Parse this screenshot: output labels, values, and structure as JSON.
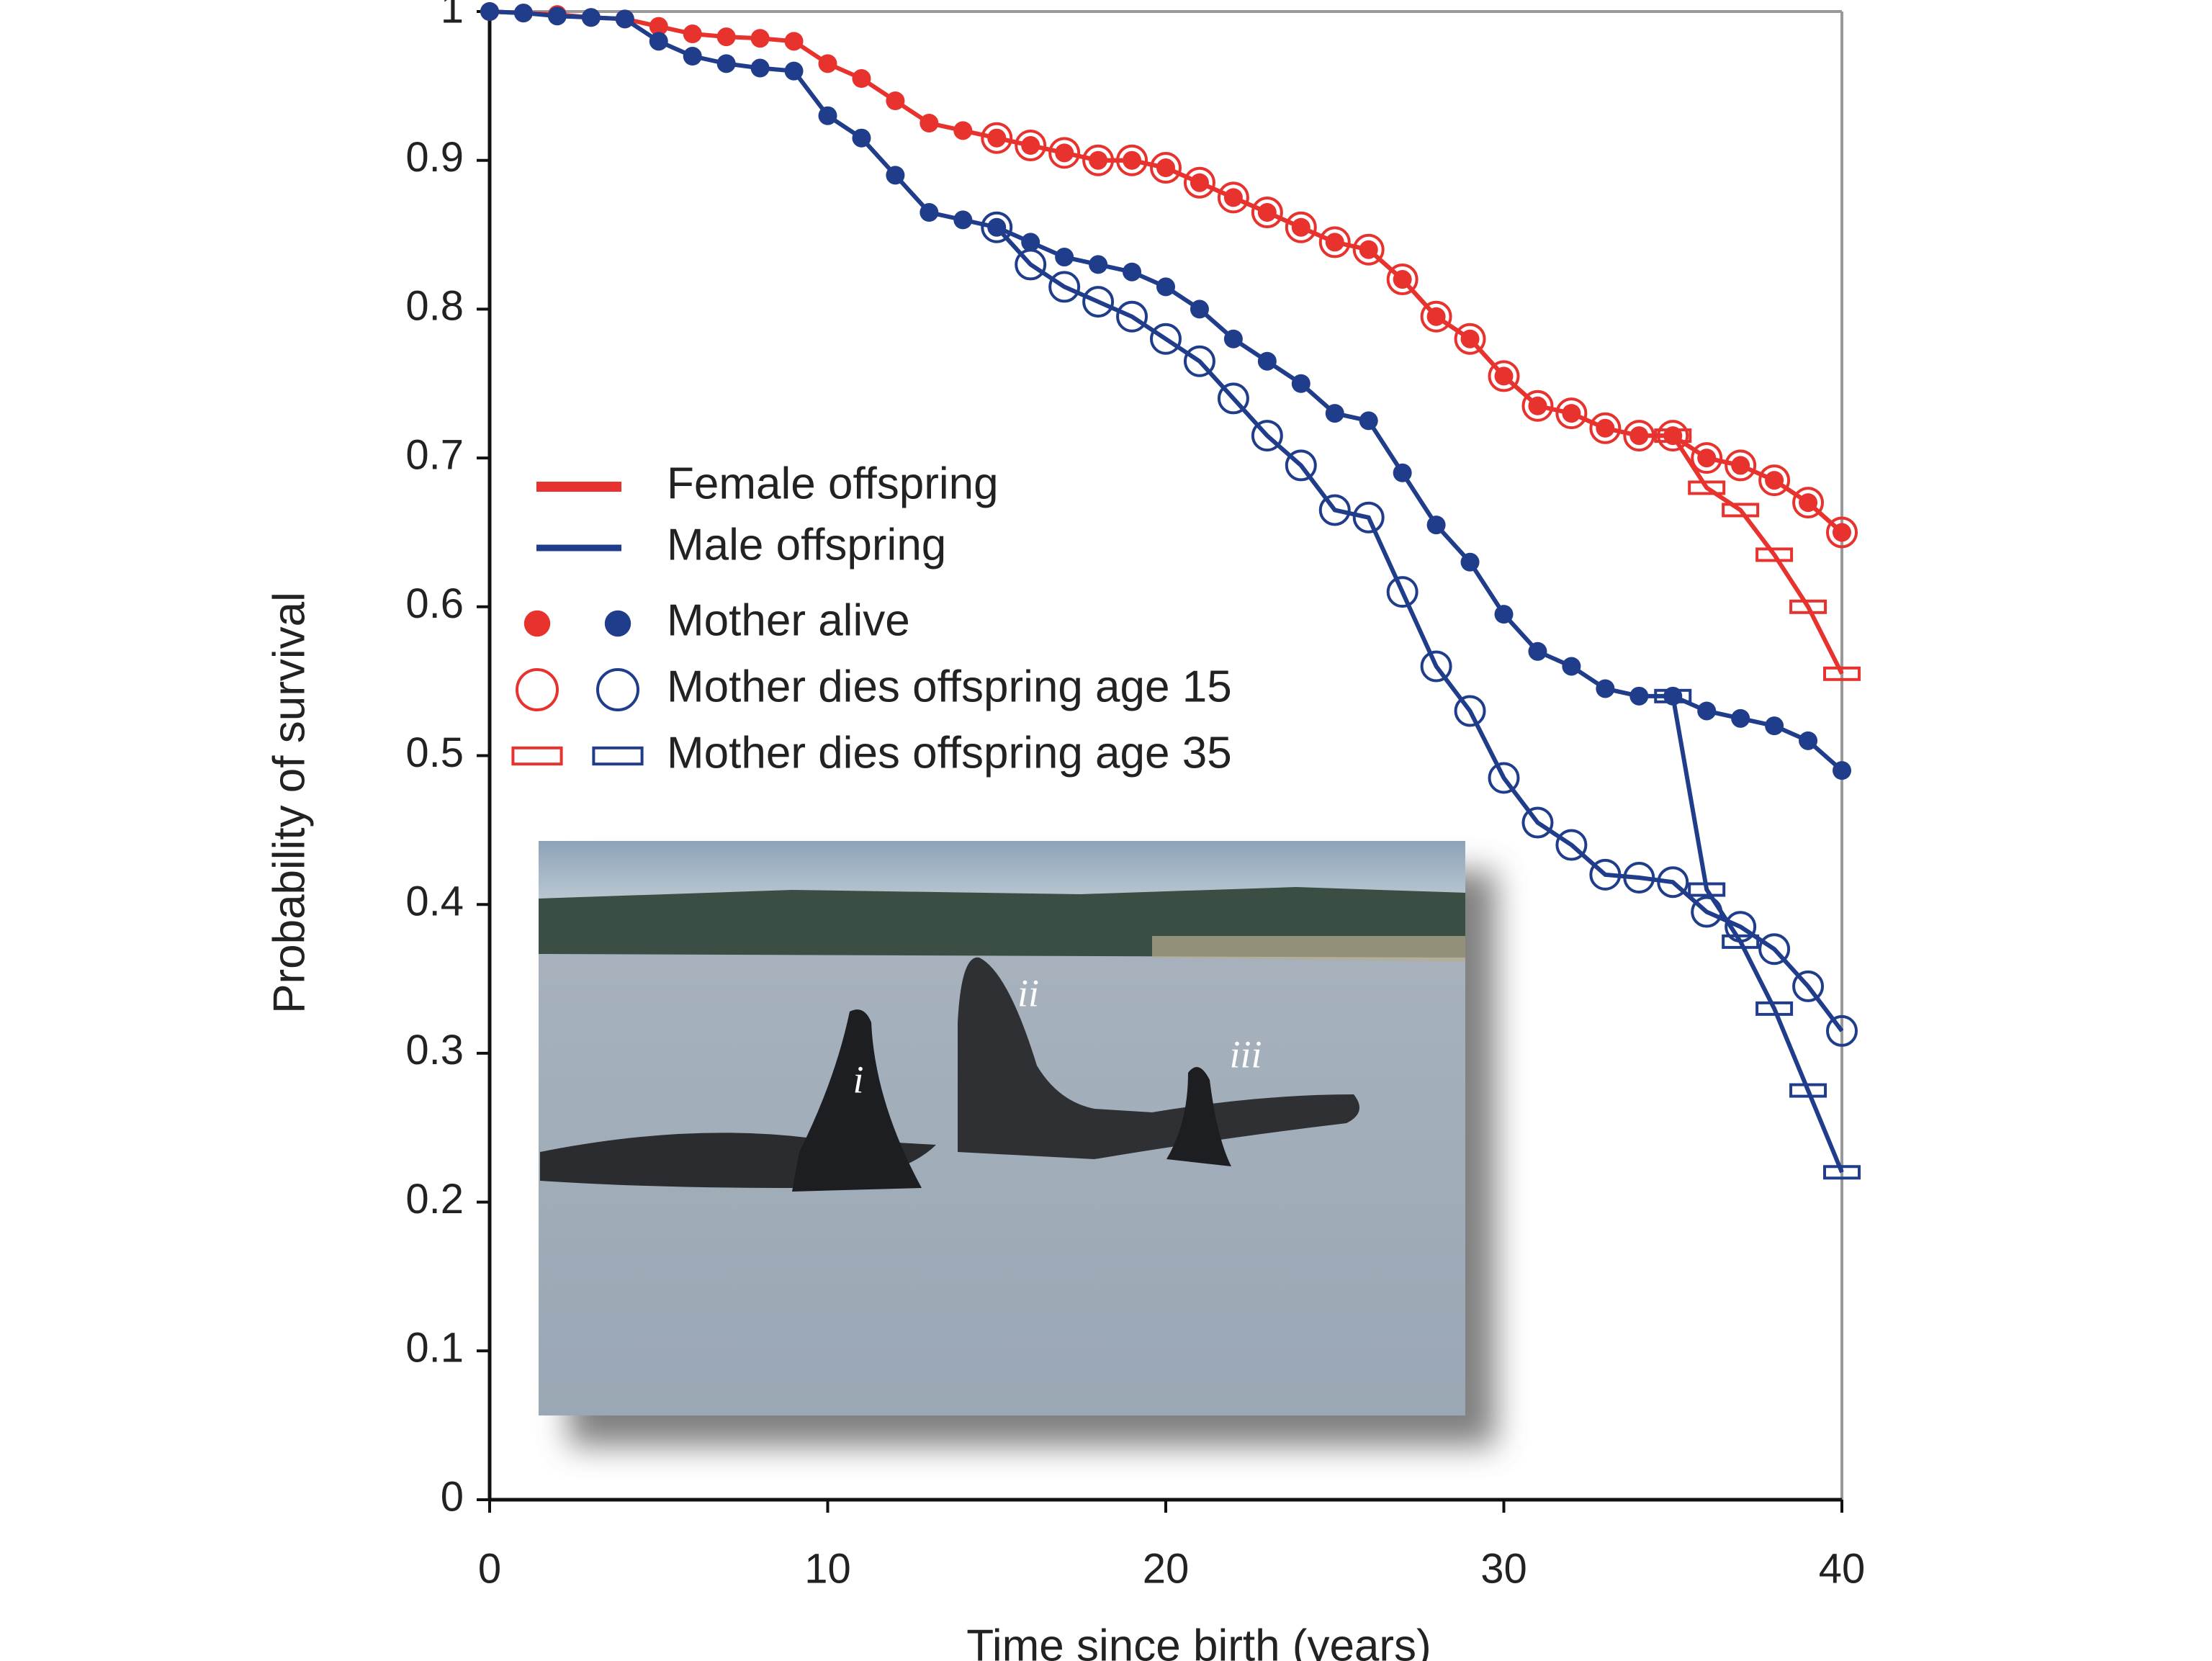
{
  "chart_data": {
    "type": "line",
    "x_label": "Time since birth (years)",
    "y_label": "Probability of survival",
    "xlim": [
      0,
      40
    ],
    "xticks": [
      0,
      10,
      20,
      30,
      40
    ],
    "ylim": [
      0,
      1
    ],
    "yticks": [
      0,
      0.1,
      0.2,
      0.3,
      0.4,
      0.5,
      0.6,
      0.7,
      0.8,
      0.9,
      1
    ],
    "x": [
      0,
      1,
      2,
      3,
      4,
      5,
      6,
      7,
      8,
      9,
      10,
      11,
      12,
      13,
      14,
      15,
      16,
      17,
      18,
      19,
      20,
      21,
      22,
      23,
      24,
      25,
      26,
      27,
      28,
      29,
      30,
      31,
      32,
      33,
      34,
      35,
      36,
      37,
      38,
      39,
      40
    ],
    "series": [
      {
        "color": "#e8322e",
        "marker": "dot",
        "values": [
          1,
          0.999,
          0.998,
          0.996,
          0.995,
          0.99,
          0.985,
          0.983,
          0.982,
          0.98,
          0.965,
          0.955,
          0.94,
          0.925,
          0.92,
          0.915,
          0.91,
          0.905,
          0.9,
          0.9,
          0.895,
          0.885,
          0.875,
          0.865,
          0.855,
          0.845,
          0.84,
          0.82,
          0.795,
          0.78,
          0.755,
          0.735,
          0.73,
          0.72,
          0.715,
          0.715,
          0.7,
          0.695,
          0.685,
          0.67,
          0.65
        ]
      },
      {
        "color": "#e8322e",
        "marker": "circle",
        "values": [
          null,
          null,
          null,
          null,
          null,
          null,
          null,
          null,
          null,
          null,
          null,
          null,
          null,
          null,
          null,
          0.915,
          0.91,
          0.905,
          0.9,
          0.9,
          0.895,
          0.885,
          0.875,
          0.865,
          0.855,
          0.845,
          0.84,
          0.82,
          0.795,
          0.78,
          0.755,
          0.735,
          0.73,
          0.72,
          0.715,
          0.715,
          0.7,
          0.695,
          0.685,
          0.67,
          0.65
        ]
      },
      {
        "color": "#e8322e",
        "marker": "rect",
        "values": [
          null,
          null,
          null,
          null,
          null,
          null,
          null,
          null,
          null,
          null,
          null,
          null,
          null,
          null,
          null,
          null,
          null,
          null,
          null,
          null,
          null,
          null,
          null,
          null,
          null,
          null,
          null,
          null,
          null,
          null,
          null,
          null,
          null,
          null,
          null,
          0.715,
          0.68,
          0.665,
          0.635,
          0.6,
          0.555
        ]
      },
      {
        "color": "#1f3d8a",
        "marker": "dot",
        "values": [
          1,
          0.999,
          0.997,
          0.996,
          0.995,
          0.98,
          0.97,
          0.965,
          0.962,
          0.96,
          0.93,
          0.915,
          0.89,
          0.865,
          0.86,
          0.855,
          0.845,
          0.835,
          0.83,
          0.825,
          0.815,
          0.8,
          0.78,
          0.765,
          0.75,
          0.73,
          0.725,
          0.69,
          0.655,
          0.63,
          0.595,
          0.57,
          0.56,
          0.545,
          0.54,
          0.54,
          0.53,
          0.525,
          0.52,
          0.51,
          0.49
        ]
      },
      {
        "color": "#1f3d8a",
        "marker": "circle",
        "values": [
          null,
          null,
          null,
          null,
          null,
          null,
          null,
          null,
          null,
          null,
          null,
          null,
          null,
          null,
          null,
          0.855,
          0.83,
          0.815,
          0.805,
          0.795,
          0.78,
          0.765,
          0.74,
          0.715,
          0.695,
          0.665,
          0.66,
          0.61,
          0.56,
          0.53,
          0.485,
          0.455,
          0.44,
          0.42,
          0.418,
          0.415,
          0.395,
          0.385,
          0.37,
          0.345,
          0.315
        ]
      },
      {
        "color": "#1f3d8a",
        "marker": "rect",
        "values": [
          null,
          null,
          null,
          null,
          null,
          null,
          null,
          null,
          null,
          null,
          null,
          null,
          null,
          null,
          null,
          null,
          null,
          null,
          null,
          null,
          null,
          null,
          null,
          null,
          null,
          null,
          null,
          null,
          null,
          null,
          null,
          null,
          null,
          null,
          null,
          0.54,
          0.41,
          0.375,
          0.33,
          0.275,
          0.22
        ]
      }
    ],
    "legend": {
      "lines": [
        {
          "label": "Female offspring",
          "color": "#e8322e"
        },
        {
          "label": "Male offspring",
          "color": "#1f3d8a"
        }
      ],
      "markers": [
        {
          "label": "Mother alive",
          "marker": "dot"
        },
        {
          "label": "Mother dies offspring age 15",
          "marker": "circle"
        },
        {
          "label": "Mother dies offspring age 35",
          "marker": "rect"
        }
      ]
    },
    "photo_labels": [
      "i",
      "ii",
      "iii"
    ]
  }
}
